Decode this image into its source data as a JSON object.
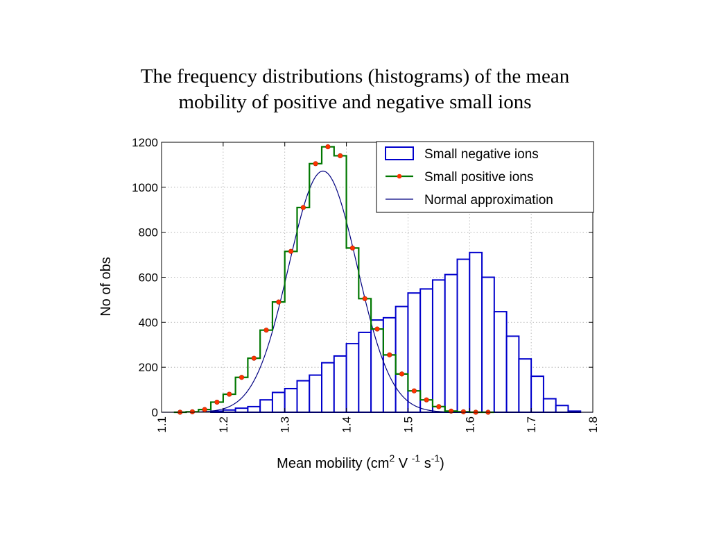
{
  "chart_data": {
    "type": "bar",
    "title": [
      "The frequency distributions (histograms) of the mean",
      "mobility of positive and negative small ions"
    ],
    "xlabel": "Mean mobility  (cm² V⁻¹ s⁻¹)",
    "ylabel": "No of obs",
    "xlim": [
      1.1,
      1.8
    ],
    "ylim": [
      0,
      1200
    ],
    "xticks": [
      "1.1",
      "1.2",
      "1.3",
      "1.4",
      "1.5",
      "1.6",
      "1.7",
      "1.8"
    ],
    "yticks": [
      "0",
      "200",
      "400",
      "600",
      "800",
      "1000",
      "1200"
    ],
    "grid": true,
    "legend_position": "top-right",
    "bin_width": 0.02,
    "series": [
      {
        "name": "Small negative ions",
        "kind": "histogram",
        "color": "#0000cc",
        "bin_starts": [
          1.18,
          1.2,
          1.22,
          1.24,
          1.26,
          1.28,
          1.3,
          1.32,
          1.34,
          1.36,
          1.38,
          1.4,
          1.42,
          1.44,
          1.46,
          1.48,
          1.5,
          1.52,
          1.54,
          1.56,
          1.58,
          1.6,
          1.62,
          1.64,
          1.66,
          1.68,
          1.7,
          1.72,
          1.74,
          1.76
        ],
        "values": [
          5,
          10,
          18,
          25,
          55,
          88,
          105,
          140,
          165,
          220,
          250,
          305,
          355,
          410,
          420,
          470,
          530,
          548,
          588,
          612,
          680,
          710,
          600,
          447,
          338,
          237,
          160,
          60,
          30,
          5
        ]
      },
      {
        "name": "Small positive ions",
        "kind": "step",
        "color": "#007700",
        "marker_color": "#ff3300",
        "x": [
          1.13,
          1.15,
          1.17,
          1.19,
          1.21,
          1.23,
          1.25,
          1.27,
          1.29,
          1.31,
          1.33,
          1.35,
          1.37,
          1.39,
          1.41,
          1.43,
          1.45,
          1.47,
          1.49,
          1.51,
          1.53,
          1.55,
          1.57,
          1.59,
          1.61,
          1.63
        ],
        "values": [
          0,
          2,
          12,
          45,
          80,
          155,
          240,
          365,
          490,
          715,
          910,
          1105,
          1180,
          1140,
          730,
          505,
          370,
          255,
          170,
          95,
          55,
          25,
          5,
          2,
          0,
          0
        ]
      },
      {
        "name": "Normal approximation",
        "kind": "curve",
        "color": "#000080",
        "mean": 1.362,
        "sd": 0.0555,
        "peak": 1072
      }
    ]
  }
}
